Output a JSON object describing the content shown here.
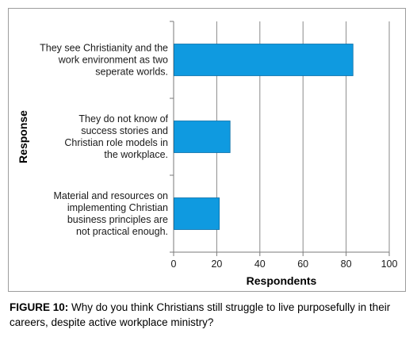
{
  "chart_data": {
    "type": "bar",
    "orientation": "horizontal",
    "categories": [
      [
        "They see Christianity and the",
        "work environment as two",
        "seperate worlds."
      ],
      [
        "They do not know of",
        "success stories and",
        "Christian role models in",
        "the workplace."
      ],
      [
        "Material and resources on",
        "implementing Christian",
        "business principles are",
        "not practical enough."
      ]
    ],
    "values": [
      83,
      26,
      21
    ],
    "xlabel": "Respondents",
    "ylabel": "Response",
    "xlim": [
      0,
      100
    ],
    "xticks": [
      "0",
      "20",
      "40",
      "60",
      "80",
      "100"
    ],
    "grid": true,
    "bar_color": "#0f9ae0",
    "bar_edge_color": "#0a6fa8"
  },
  "caption": {
    "label": "FIGURE 10:",
    "text": " Why do you think Christians still struggle to live purposefully in their careers, despite active workplace ministry?"
  }
}
